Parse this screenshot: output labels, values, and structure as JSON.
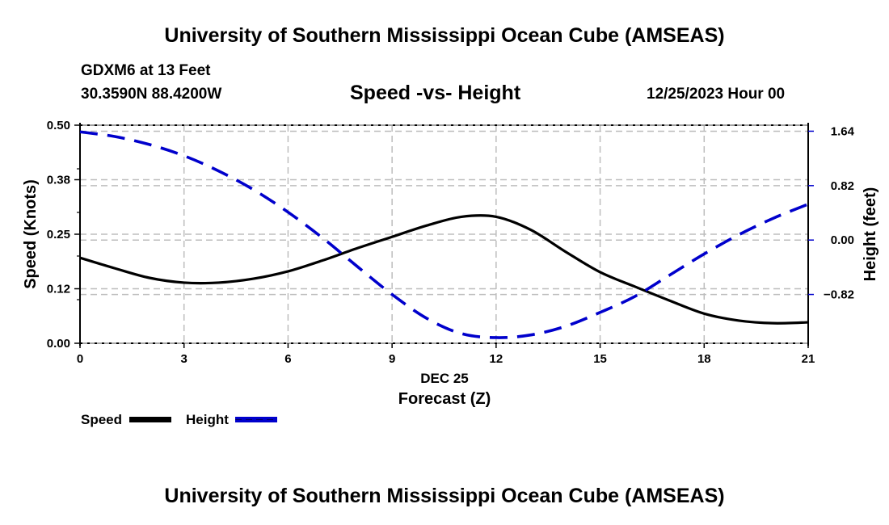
{
  "header": {
    "title": "University of Southern Mississippi Ocean Cube (AMSEAS)",
    "station": "GDXM6 at 13 Feet",
    "coords": "30.3590N  88.4200W",
    "chart_title": "Speed -vs- Height",
    "datetime": "12/25/2023 Hour 00"
  },
  "footer": {
    "title": "University of Southern Mississippi Ocean Cube (AMSEAS)"
  },
  "legend": {
    "items": [
      {
        "label": "Speed",
        "color": "#000000",
        "style": "solid"
      },
      {
        "label": "Height",
        "color": "#0000cc",
        "style": "dashed"
      }
    ]
  },
  "chart_data": {
    "type": "line",
    "title": "Speed -vs- Height",
    "xlabel": "Forecast (Z)",
    "xlabel_date": "DEC 25",
    "ylabel": "Speed (Knots)",
    "y2label": "Height (feet)",
    "xlim": [
      0,
      21
    ],
    "ylim": [
      0,
      0.5
    ],
    "y2lim": [
      -1.5555,
      1.7306
    ],
    "x_ticks": [
      0,
      3,
      6,
      9,
      12,
      15,
      18,
      21
    ],
    "x_tick_labels": [
      "0",
      "3",
      "6",
      "9",
      "12",
      "15",
      "18",
      "21"
    ],
    "y_ticks": [
      0,
      0.125,
      0.25,
      0.375,
      0.5
    ],
    "y_tick_labels": [
      "0.00",
      "0.12",
      "0.25",
      "0.38",
      "0.50"
    ],
    "y_minor_ticks": [
      0.1,
      0.2,
      0.3,
      0.4
    ],
    "y2_ticks": [
      -0.82,
      0,
      0.82,
      1.64
    ],
    "y2_tick_labels": [
      "−0.82",
      "0.00",
      "0.82",
      "1.64"
    ],
    "grid": true,
    "legend_position": "bottom-left",
    "x": [
      0,
      1,
      2,
      3,
      4,
      5,
      6,
      7,
      8,
      9,
      10,
      11,
      12,
      13,
      14,
      15,
      16,
      17,
      18,
      19,
      20,
      21
    ],
    "series": [
      {
        "name": "Speed",
        "axis": "left",
        "color": "#000000",
        "style": "solid",
        "values": [
          0.196,
          0.172,
          0.15,
          0.139,
          0.139,
          0.148,
          0.165,
          0.19,
          0.218,
          0.244,
          0.27,
          0.29,
          0.29,
          0.26,
          0.21,
          0.163,
          0.13,
          0.098,
          0.068,
          0.052,
          0.046,
          0.048
        ]
      },
      {
        "name": "Height",
        "axis": "right",
        "color": "#0000cc",
        "style": "dashed",
        "values": [
          1.63,
          1.56,
          1.44,
          1.27,
          1.04,
          0.76,
          0.42,
          0.03,
          -0.4,
          -0.82,
          -1.18,
          -1.41,
          -1.47,
          -1.43,
          -1.3,
          -1.09,
          -0.85,
          -0.53,
          -0.21,
          0.08,
          0.33,
          0.54
        ]
      }
    ]
  }
}
